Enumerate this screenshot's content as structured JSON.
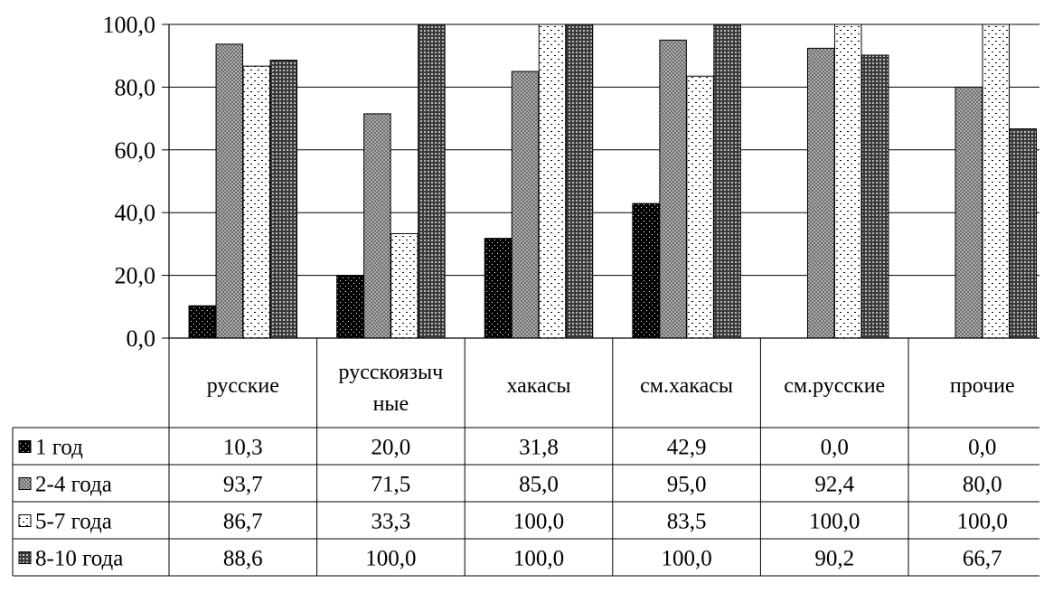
{
  "chart_data": {
    "type": "bar",
    "categories": [
      "русские",
      "русскоязычные",
      "хакасы",
      "см.хакасы",
      "см.русские",
      "прочие"
    ],
    "category_display": [
      [
        "русские"
      ],
      [
        "русскоязыч",
        "ные"
      ],
      [
        "хакасы"
      ],
      [
        "см.хакасы"
      ],
      [
        "см.русские"
      ],
      [
        "прочие"
      ]
    ],
    "series": [
      {
        "name": "1 год",
        "values": [
          10.3,
          20.0,
          31.8,
          42.9,
          0.0,
          0.0
        ],
        "display": [
          "10,3",
          "20,0",
          "31,8",
          "42,9",
          "0,0",
          "0,0"
        ],
        "pattern": "black-dots",
        "color": "#000000"
      },
      {
        "name": "2-4 года",
        "values": [
          93.7,
          71.5,
          85.0,
          95.0,
          92.4,
          80.0
        ],
        "display": [
          "93,7",
          "71,5",
          "85,0",
          "95,0",
          "92,4",
          "80,0"
        ],
        "pattern": "gray-checker",
        "color": "#8c8c8c"
      },
      {
        "name": "5-7 года",
        "values": [
          86.7,
          33.3,
          100.0,
          83.5,
          100.0,
          100.0
        ],
        "display": [
          "86,7",
          "33,3",
          "100,0",
          "83,5",
          "100,0",
          "100,0"
        ],
        "pattern": "white-dots",
        "color": "#ffffff"
      },
      {
        "name": "8-10 года",
        "values": [
          88.6,
          100.0,
          100.0,
          100.0,
          90.2,
          66.7
        ],
        "display": [
          "88,6",
          "100,0",
          "100,0",
          "100,0",
          "90,2",
          "66,7"
        ],
        "pattern": "dark-checker",
        "color": "#5a5a5a"
      }
    ],
    "y_ticks": [
      "0,0",
      "20,0",
      "40,0",
      "60,0",
      "80,0",
      "100,0"
    ],
    "ylim": [
      0,
      100
    ],
    "grid": true,
    "legend": "data-table-left",
    "title": "",
    "xlabel": "",
    "ylabel": ""
  }
}
